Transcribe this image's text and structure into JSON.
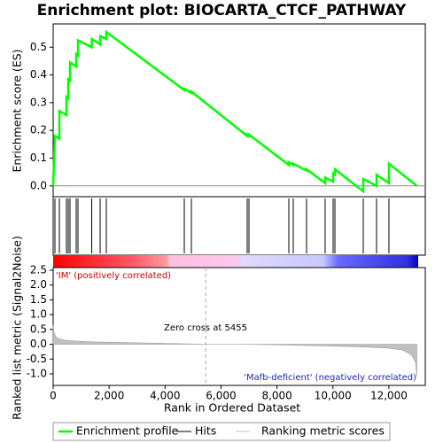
{
  "chart_data": [
    {
      "type": "line",
      "title": "Enrichment plot: BIOCARTA_CTCF_PATHWAY",
      "ylabel": "Enrichment score (ES)",
      "xlim": [
        0,
        13300
      ],
      "ylim": [
        -0.039,
        0.584
      ],
      "yticks": [
        {
          "value": 0,
          "label": "0.0"
        },
        0.1,
        0.2,
        0.3,
        0.4,
        0.5
      ],
      "series": [
        {
          "name": "Enrichment profile",
          "color": "#00ff00",
          "x": [
            0,
            63,
            222,
            222,
            475,
            475,
            538,
            538,
            601,
            601,
            823,
            823,
            887,
            887,
            1380,
            1380,
            1680,
            1680,
            1900,
            1900,
            4687,
            4687,
            4940,
            4940,
            6935,
            6935,
            6998,
            6998,
            8423,
            8423,
            8582,
            8582,
            9057,
            9057,
            9721,
            9721,
            10006,
            10006,
            10070,
            10070,
            11083,
            11083,
            11558,
            11558,
            12001,
            12001,
            13000
          ],
          "values": [
            0,
            0.18,
            0.17,
            0.27,
            0.255,
            0.32,
            0.315,
            0.385,
            0.38,
            0.445,
            0.43,
            0.475,
            0.47,
            0.525,
            0.5,
            0.53,
            0.51,
            0.54,
            0.53,
            0.555,
            0.345,
            0.35,
            0.335,
            0.34,
            0.18,
            0.185,
            0.18,
            0.185,
            0.075,
            0.085,
            0.075,
            0.08,
            0.055,
            0.06,
            0.01,
            0.03,
            0.015,
            0.045,
            0.04,
            0.06,
            -0.02,
            0.025,
            0.0,
            0.04,
            0.01,
            0.08,
            0
          ]
        }
      ],
      "hits": {
        "name": "Hits",
        "color": "#000000",
        "x": [
          63,
          222,
          475,
          538,
          601,
          823,
          887,
          1380,
          1680,
          1900,
          4687,
          4940,
          6935,
          6998,
          8423,
          8582,
          9057,
          9721,
          10006,
          10070,
          11083,
          11558,
          12001
        ]
      }
    },
    {
      "type": "area",
      "xlabel": "Rank in Ordered Dataset",
      "ylabel": "Ranked list metric (Signal2Noise)",
      "xlim": [
        0,
        13300
      ],
      "xticks": [
        0,
        {
          "value": 2000,
          "label": "2,000"
        },
        {
          "value": 4000,
          "label": "4,000"
        },
        {
          "value": 6000,
          "label": "6,000"
        },
        {
          "value": 8000,
          "label": "8,000"
        },
        {
          "value": 10000,
          "label": "10,000"
        },
        {
          "value": 12000,
          "label": "12,000"
        }
      ],
      "ylim": [
        -1.39,
        2.59
      ],
      "yticks": [
        {
          "value": -1,
          "label": "-1.0"
        },
        -0.5,
        {
          "value": 0,
          "label": "0.0"
        },
        0.5,
        {
          "value": 1,
          "label": "1.0"
        },
        1.5,
        {
          "value": 2,
          "label": "2.0"
        },
        2.5
      ],
      "series": [
        {
          "name": "Ranking metric scores",
          "color": "#c0c0c0",
          "x": [
            0,
            30,
            100,
            200,
            400,
            800,
            1500,
            2500,
            4000,
            5455,
            6800,
            8000,
            9000,
            10000,
            11000,
            12000,
            12500,
            12800,
            12950,
            13000
          ],
          "values": [
            0.65,
            0.4,
            0.25,
            0.18,
            0.14,
            0.11,
            0.08,
            0.06,
            0.03,
            0,
            0,
            -0.02,
            -0.04,
            -0.06,
            -0.09,
            -0.13,
            -0.2,
            -0.35,
            -0.6,
            -1.1
          ]
        }
      ],
      "zero_cross": 5455,
      "annotations": [
        "'IM' (positively correlated)",
        "Zero cross at 5455",
        "'Mafb-deficient' (negatively correlated)"
      ]
    }
  ]
}
